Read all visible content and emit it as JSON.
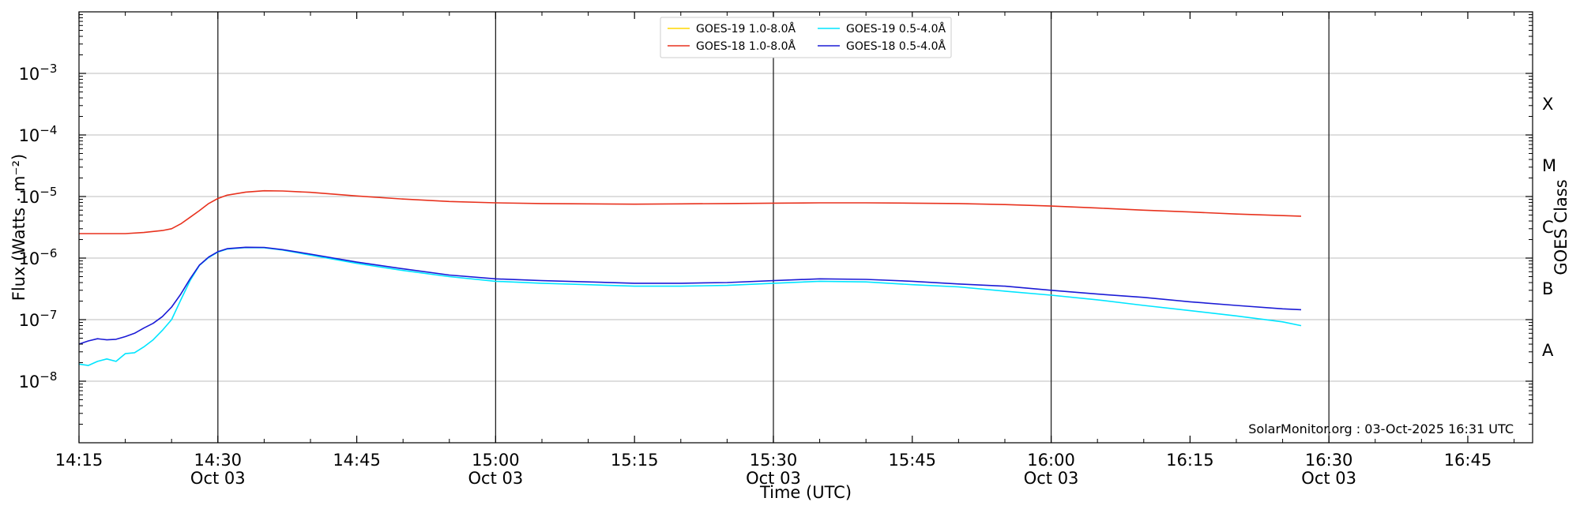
{
  "chart_data": {
    "type": "line",
    "title": "",
    "xlabel": "Time (UTC)",
    "ylabel": "Flux (Watts · m⁻²)",
    "y2label": "GOES Class",
    "yscale": "log",
    "ylim": [
      1e-09,
      0.01
    ],
    "xlim": [
      "14:15",
      "16:52"
    ],
    "grid": true,
    "legend_position": "top-center",
    "x_ticks": [
      {
        "t": "14:15",
        "label": "14:15",
        "date": ""
      },
      {
        "t": "14:30",
        "label": "14:30",
        "date": "Oct 03"
      },
      {
        "t": "14:45",
        "label": "14:45",
        "date": ""
      },
      {
        "t": "15:00",
        "label": "15:00",
        "date": "Oct 03"
      },
      {
        "t": "15:15",
        "label": "15:15",
        "date": ""
      },
      {
        "t": "15:30",
        "label": "15:30",
        "date": "Oct 03"
      },
      {
        "t": "15:45",
        "label": "15:45",
        "date": ""
      },
      {
        "t": "16:00",
        "label": "16:00",
        "date": "Oct 03"
      },
      {
        "t": "16:15",
        "label": "16:15",
        "date": ""
      },
      {
        "t": "16:30",
        "label": "16:30",
        "date": "Oct 03"
      },
      {
        "t": "16:45",
        "label": "16:45",
        "date": ""
      }
    ],
    "y_ticks": [
      {
        "exp": -8,
        "label": "10",
        "sup": "−8"
      },
      {
        "exp": -7,
        "label": "10",
        "sup": "−7"
      },
      {
        "exp": -6,
        "label": "10",
        "sup": "−6"
      },
      {
        "exp": -5,
        "label": "10",
        "sup": "−5"
      },
      {
        "exp": -4,
        "label": "10",
        "sup": "−4"
      },
      {
        "exp": -3,
        "label": "10",
        "sup": "−3"
      }
    ],
    "goes_classes": [
      {
        "label": "A",
        "exp": -7.5
      },
      {
        "label": "B",
        "exp": -6.5
      },
      {
        "label": "C",
        "exp": -5.5
      },
      {
        "label": "M",
        "exp": -4.5
      },
      {
        "label": "X",
        "exp": -3.5
      }
    ],
    "series": [
      {
        "name": "GOES-19 1.0-8.0Å",
        "color": "#ffd700",
        "x": [],
        "y": []
      },
      {
        "name": "GOES-18 1.0-8.0Å",
        "color": "#e8321e",
        "x": [
          "14:15",
          "14:20",
          "14:22",
          "14:24",
          "14:25",
          "14:26",
          "14:27",
          "14:28",
          "14:29",
          "14:30",
          "14:31",
          "14:33",
          "14:35",
          "14:37",
          "14:40",
          "14:45",
          "14:50",
          "14:55",
          "15:00",
          "15:05",
          "15:10",
          "15:15",
          "15:20",
          "15:25",
          "15:30",
          "15:35",
          "15:40",
          "15:45",
          "15:50",
          "15:55",
          "16:00",
          "16:05",
          "16:10",
          "16:15",
          "16:20",
          "16:27"
        ],
        "y": [
          2.5e-06,
          2.5e-06,
          2.6e-06,
          2.8e-06,
          3e-06,
          3.6e-06,
          4.6e-06,
          5.9e-06,
          7.7e-06,
          9.3e-06,
          1.05e-05,
          1.18e-05,
          1.24e-05,
          1.23e-05,
          1.17e-05,
          1.02e-05,
          9.1e-06,
          8.3e-06,
          7.9e-06,
          7.7e-06,
          7.6e-06,
          7.5e-06,
          7.6e-06,
          7.7e-06,
          7.8e-06,
          7.9e-06,
          7.9e-06,
          7.8e-06,
          7.7e-06,
          7.4e-06,
          7e-06,
          6.5e-06,
          6e-06,
          5.6e-06,
          5.2e-06,
          4.8e-06
        ]
      },
      {
        "name": "GOES-19 0.5-4.0Å",
        "color": "#00e5ff",
        "x": [
          "14:15",
          "14:16",
          "14:17",
          "14:18",
          "14:19",
          "14:20",
          "14:21",
          "14:22",
          "14:23",
          "14:24",
          "14:25",
          "14:26",
          "14:27",
          "14:28",
          "14:29",
          "14:30",
          "14:31",
          "14:33",
          "14:35",
          "14:37",
          "14:40",
          "14:45",
          "14:50",
          "14:55",
          "15:00",
          "15:05",
          "15:10",
          "15:15",
          "15:20",
          "15:25",
          "15:30",
          "15:35",
          "15:40",
          "15:45",
          "15:50",
          "15:55",
          "16:00",
          "16:05",
          "16:10",
          "16:15",
          "16:20",
          "16:25",
          "16:27"
        ],
        "y": [
          1.9e-08,
          1.8e-08,
          2.1e-08,
          2.3e-08,
          2.1e-08,
          2.8e-08,
          2.9e-08,
          3.6e-08,
          4.7e-08,
          6.7e-08,
          1e-07,
          2.1e-07,
          4.3e-07,
          7.6e-07,
          1.02e-06,
          1.25e-06,
          1.4e-06,
          1.48e-06,
          1.47e-06,
          1.35e-06,
          1.12e-06,
          8.2e-07,
          6.3e-07,
          5e-07,
          4.2e-07,
          3.9e-07,
          3.7e-07,
          3.5e-07,
          3.5e-07,
          3.6e-07,
          3.9e-07,
          4.2e-07,
          4.1e-07,
          3.7e-07,
          3.4e-07,
          2.9e-07,
          2.5e-07,
          2.1e-07,
          1.7e-07,
          1.4e-07,
          1.15e-07,
          9.2e-08,
          8e-08
        ]
      },
      {
        "name": "GOES-18 0.5-4.0Å",
        "color": "#1b1bd6",
        "x": [
          "14:15",
          "14:16",
          "14:17",
          "14:18",
          "14:19",
          "14:20",
          "14:21",
          "14:22",
          "14:23",
          "14:24",
          "14:25",
          "14:26",
          "14:27",
          "14:28",
          "14:29",
          "14:30",
          "14:31",
          "14:33",
          "14:35",
          "14:37",
          "14:40",
          "14:45",
          "14:50",
          "14:55",
          "15:00",
          "15:05",
          "15:10",
          "15:15",
          "15:20",
          "15:25",
          "15:30",
          "15:35",
          "15:40",
          "15:45",
          "15:50",
          "15:55",
          "16:00",
          "16:05",
          "16:10",
          "16:15",
          "16:20",
          "16:25",
          "16:27"
        ],
        "y": [
          4e-08,
          4.5e-08,
          4.9e-08,
          4.7e-08,
          4.8e-08,
          5.3e-08,
          6e-08,
          7.3e-08,
          8.7e-08,
          1.12e-07,
          1.6e-07,
          2.6e-07,
          4.6e-07,
          7.7e-07,
          1.04e-06,
          1.27e-06,
          1.42e-06,
          1.5e-06,
          1.49e-06,
          1.37e-06,
          1.16e-06,
          8.6e-07,
          6.7e-07,
          5.3e-07,
          4.6e-07,
          4.3e-07,
          4.1e-07,
          3.9e-07,
          3.9e-07,
          4e-07,
          4.3e-07,
          4.6e-07,
          4.5e-07,
          4.2e-07,
          3.8e-07,
          3.5e-07,
          3e-07,
          2.6e-07,
          2.3e-07,
          1.95e-07,
          1.7e-07,
          1.5e-07,
          1.45e-07
        ]
      }
    ],
    "credit": "SolarMonitor.org : 03-Oct-2025 16:31 UTC"
  }
}
